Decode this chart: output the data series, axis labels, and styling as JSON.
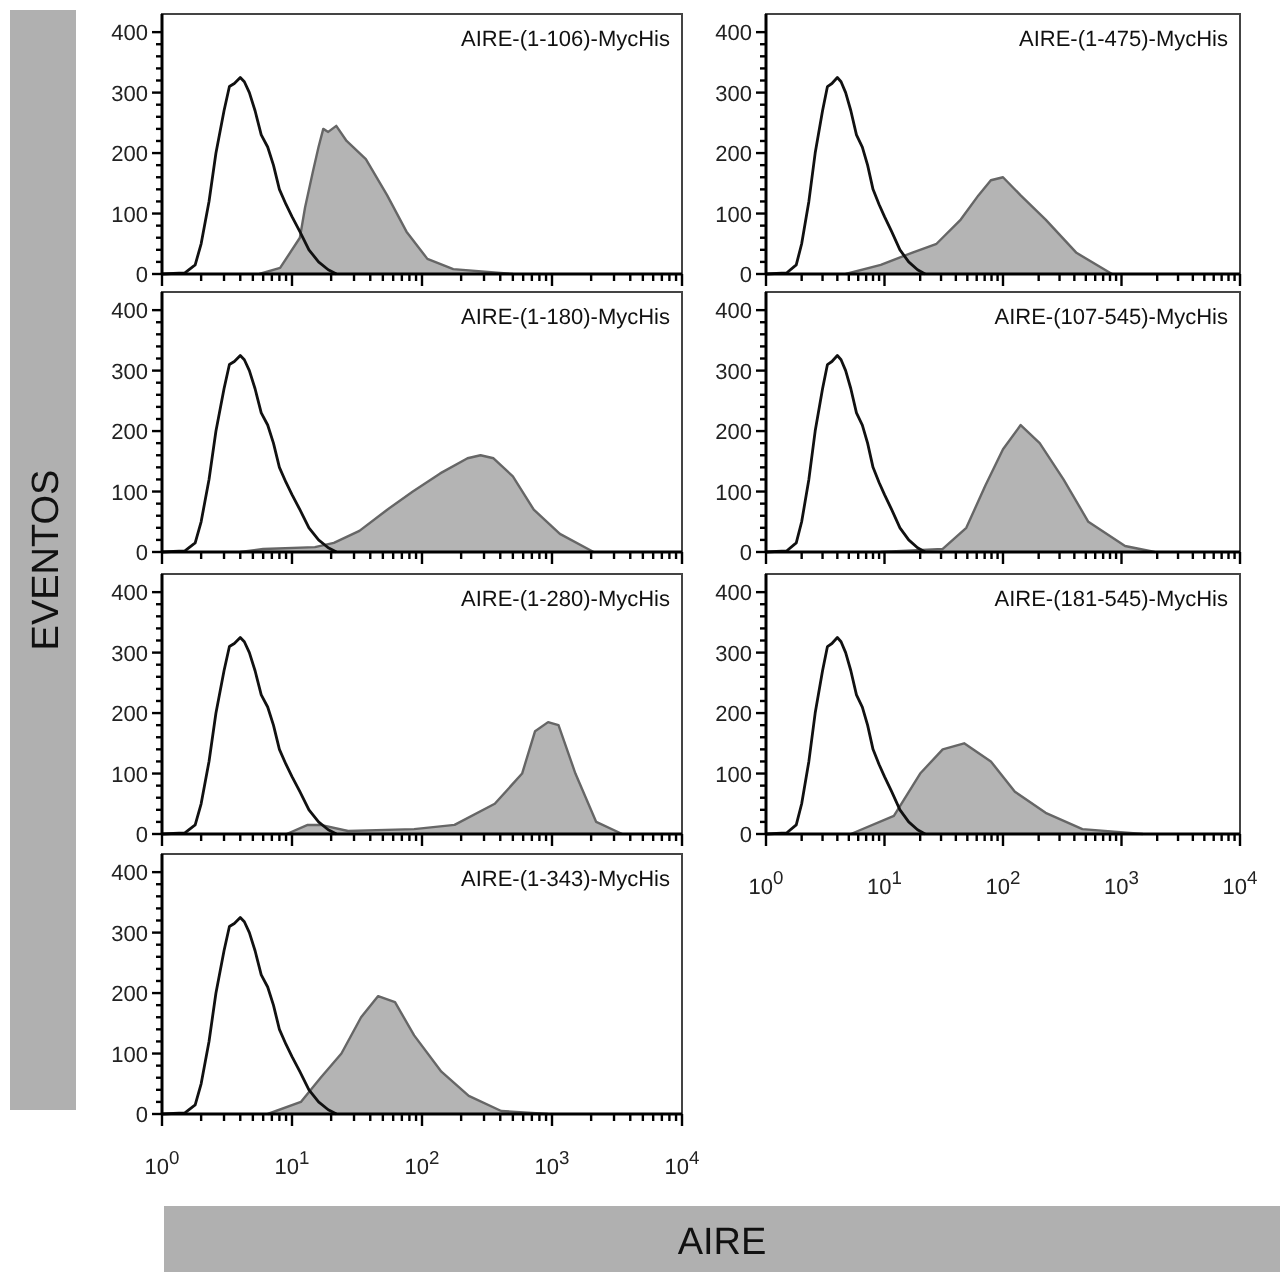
{
  "chart_data": [
    {
      "type": "area",
      "title": "AIRE-(1-106)-MycHis",
      "ylabel": "EVENTOS",
      "log": "x",
      "tick_labels": "y",
      "xlim": [
        1,
        10000
      ],
      "ylim": [
        0,
        430
      ],
      "xticks": [
        {
          "value": 1,
          "label": null
        },
        {
          "value": 2,
          "label": null
        },
        {
          "value": 3,
          "label": null
        },
        {
          "value": 4,
          "label": null
        },
        {
          "value": 5,
          "label": null
        },
        {
          "value": 6,
          "label": null
        },
        {
          "value": 7,
          "label": null
        },
        {
          "value": 8,
          "label": null
        },
        {
          "value": 9,
          "label": null
        },
        {
          "value": 10,
          "label": null
        },
        {
          "value": 20,
          "label": null
        },
        {
          "value": 30,
          "label": null
        },
        {
          "value": 40,
          "label": null
        },
        {
          "value": 50,
          "label": null
        },
        {
          "value": 60,
          "label": null
        },
        {
          "value": 70,
          "label": null
        },
        {
          "value": 80,
          "label": null
        },
        {
          "value": 90,
          "label": null
        },
        {
          "value": 100,
          "label": null
        },
        {
          "value": 200,
          "label": null
        },
        {
          "value": 300,
          "label": null
        },
        {
          "value": 400,
          "label": null
        },
        {
          "value": 500,
          "label": null
        },
        {
          "value": 600,
          "label": null
        },
        {
          "value": 700,
          "label": null
        },
        {
          "value": 800,
          "label": null
        },
        {
          "value": 900,
          "label": null
        },
        {
          "value": 1000,
          "label": null
        },
        {
          "value": 2000,
          "label": null
        },
        {
          "value": 3000,
          "label": null
        },
        {
          "value": 4000,
          "label": null
        },
        {
          "value": 5000,
          "label": null
        },
        {
          "value": 6000,
          "label": null
        },
        {
          "value": 7000,
          "label": null
        },
        {
          "value": 8000,
          "label": null
        },
        {
          "value": 9000,
          "label": null
        },
        {
          "value": 10000,
          "label": null
        }
      ],
      "yticks": [
        0,
        {
          "value": 20,
          "label": null
        },
        {
          "value": 40,
          "label": null
        },
        {
          "value": 60,
          "label": null
        },
        {
          "value": 80,
          "label": null
        },
        100,
        {
          "value": 120,
          "label": null
        },
        {
          "value": 140,
          "label": null
        },
        {
          "value": 160,
          "label": null
        },
        {
          "value": 180,
          "label": null
        },
        200,
        {
          "value": 220,
          "label": null
        },
        {
          "value": 240,
          "label": null
        },
        {
          "value": 260,
          "label": null
        },
        {
          "value": 280,
          "label": null
        },
        300,
        {
          "value": 320,
          "label": null
        },
        {
          "value": 340,
          "label": null
        },
        {
          "value": 360,
          "label": null
        },
        {
          "value": 380,
          "label": null
        },
        400
      ],
      "series": [
        {
          "type": "area",
          "color": "#b4b4b4",
          "x": [
            5.6,
            8.1,
            11.5,
            12.6,
            14.5,
            16,
            17.4,
            19,
            21.9,
            26.3,
            37,
            54,
            76,
            110,
            174,
            500
          ],
          "values": [
            0,
            10,
            60,
            110,
            170,
            210,
            240,
            235,
            245,
            220,
            190,
            130,
            70,
            25,
            8,
            0
          ]
        },
        {
          "type": "line",
          "color": "#111111",
          "x": [
            1,
            1.5,
            1.8,
            2,
            2.3,
            2.6,
            3,
            3.3,
            3.6,
            4,
            4.3,
            4.7,
            5.2,
            5.8,
            6.5,
            7.2,
            8,
            9,
            10,
            11.5,
            13.5,
            16,
            19,
            22
          ],
          "values": [
            0,
            2,
            15,
            50,
            120,
            200,
            270,
            310,
            315,
            325,
            318,
            300,
            270,
            230,
            210,
            180,
            140,
            115,
            95,
            70,
            40,
            20,
            7,
            0
          ]
        }
      ]
    },
    {
      "type": "area",
      "title": "AIRE-(1-180)-MycHis",
      "log": "x",
      "tick_labels": "y",
      "xlim": [
        1,
        10000
      ],
      "ylim": [
        0,
        430
      ],
      "xticks": [
        {
          "value": 1,
          "label": null
        },
        {
          "value": 2,
          "label": null
        },
        {
          "value": 3,
          "label": null
        },
        {
          "value": 4,
          "label": null
        },
        {
          "value": 5,
          "label": null
        },
        {
          "value": 6,
          "label": null
        },
        {
          "value": 7,
          "label": null
        },
        {
          "value": 8,
          "label": null
        },
        {
          "value": 9,
          "label": null
        },
        {
          "value": 10,
          "label": null
        },
        {
          "value": 20,
          "label": null
        },
        {
          "value": 30,
          "label": null
        },
        {
          "value": 40,
          "label": null
        },
        {
          "value": 50,
          "label": null
        },
        {
          "value": 60,
          "label": null
        },
        {
          "value": 70,
          "label": null
        },
        {
          "value": 80,
          "label": null
        },
        {
          "value": 90,
          "label": null
        },
        {
          "value": 100,
          "label": null
        },
        {
          "value": 200,
          "label": null
        },
        {
          "value": 300,
          "label": null
        },
        {
          "value": 400,
          "label": null
        },
        {
          "value": 500,
          "label": null
        },
        {
          "value": 600,
          "label": null
        },
        {
          "value": 700,
          "label": null
        },
        {
          "value": 800,
          "label": null
        },
        {
          "value": 900,
          "label": null
        },
        {
          "value": 1000,
          "label": null
        },
        {
          "value": 2000,
          "label": null
        },
        {
          "value": 3000,
          "label": null
        },
        {
          "value": 4000,
          "label": null
        },
        {
          "value": 5000,
          "label": null
        },
        {
          "value": 6000,
          "label": null
        },
        {
          "value": 7000,
          "label": null
        },
        {
          "value": 8000,
          "label": null
        },
        {
          "value": 9000,
          "label": null
        },
        {
          "value": 10000,
          "label": null
        }
      ],
      "yticks": [
        0,
        {
          "value": 20,
          "label": null
        },
        {
          "value": 40,
          "label": null
        },
        {
          "value": 60,
          "label": null
        },
        {
          "value": 80,
          "label": null
        },
        100,
        {
          "value": 120,
          "label": null
        },
        {
          "value": 140,
          "label": null
        },
        {
          "value": 160,
          "label": null
        },
        {
          "value": 180,
          "label": null
        },
        200,
        {
          "value": 220,
          "label": null
        },
        {
          "value": 240,
          "label": null
        },
        {
          "value": 260,
          "label": null
        },
        {
          "value": 280,
          "label": null
        },
        300,
        {
          "value": 320,
          "label": null
        },
        {
          "value": 340,
          "label": null
        },
        {
          "value": 360,
          "label": null
        },
        {
          "value": 380,
          "label": null
        },
        400
      ],
      "series": [
        {
          "type": "area",
          "color": "#b4b4b4",
          "x": [
            4,
            6,
            15,
            21,
            33,
            54,
            85,
            138,
            224,
            282,
            355,
            500,
            724,
            1150,
            2090
          ],
          "values": [
            0,
            5,
            8,
            15,
            35,
            70,
            100,
            130,
            155,
            160,
            155,
            125,
            70,
            30,
            0
          ]
        },
        {
          "type": "line",
          "color": "#111111",
          "x": [
            1,
            1.5,
            1.8,
            2,
            2.3,
            2.6,
            3,
            3.3,
            3.6,
            4,
            4.3,
            4.7,
            5.2,
            5.8,
            6.5,
            7.2,
            8,
            9,
            10,
            11.5,
            13.5,
            16,
            19,
            22
          ],
          "values": [
            0,
            2,
            15,
            50,
            120,
            200,
            270,
            310,
            315,
            325,
            318,
            300,
            270,
            230,
            210,
            180,
            140,
            115,
            95,
            70,
            40,
            20,
            7,
            0
          ]
        }
      ]
    },
    {
      "type": "area",
      "title": "AIRE-(1-280)-MycHis",
      "log": "x",
      "tick_labels": "y",
      "xlim": [
        1,
        10000
      ],
      "ylim": [
        0,
        430
      ],
      "xticks": [
        {
          "value": 1,
          "label": null
        },
        {
          "value": 2,
          "label": null
        },
        {
          "value": 3,
          "label": null
        },
        {
          "value": 4,
          "label": null
        },
        {
          "value": 5,
          "label": null
        },
        {
          "value": 6,
          "label": null
        },
        {
          "value": 7,
          "label": null
        },
        {
          "value": 8,
          "label": null
        },
        {
          "value": 9,
          "label": null
        },
        {
          "value": 10,
          "label": null
        },
        {
          "value": 20,
          "label": null
        },
        {
          "value": 30,
          "label": null
        },
        {
          "value": 40,
          "label": null
        },
        {
          "value": 50,
          "label": null
        },
        {
          "value": 60,
          "label": null
        },
        {
          "value": 70,
          "label": null
        },
        {
          "value": 80,
          "label": null
        },
        {
          "value": 90,
          "label": null
        },
        {
          "value": 100,
          "label": null
        },
        {
          "value": 200,
          "label": null
        },
        {
          "value": 300,
          "label": null
        },
        {
          "value": 400,
          "label": null
        },
        {
          "value": 500,
          "label": null
        },
        {
          "value": 600,
          "label": null
        },
        {
          "value": 700,
          "label": null
        },
        {
          "value": 800,
          "label": null
        },
        {
          "value": 900,
          "label": null
        },
        {
          "value": 1000,
          "label": null
        },
        {
          "value": 2000,
          "label": null
        },
        {
          "value": 3000,
          "label": null
        },
        {
          "value": 4000,
          "label": null
        },
        {
          "value": 5000,
          "label": null
        },
        {
          "value": 6000,
          "label": null
        },
        {
          "value": 7000,
          "label": null
        },
        {
          "value": 8000,
          "label": null
        },
        {
          "value": 9000,
          "label": null
        },
        {
          "value": 10000,
          "label": null
        }
      ],
      "yticks": [
        0,
        {
          "value": 20,
          "label": null
        },
        {
          "value": 40,
          "label": null
        },
        {
          "value": 60,
          "label": null
        },
        {
          "value": 80,
          "label": null
        },
        100,
        {
          "value": 120,
          "label": null
        },
        {
          "value": 140,
          "label": null
        },
        {
          "value": 160,
          "label": null
        },
        {
          "value": 180,
          "label": null
        },
        200,
        {
          "value": 220,
          "label": null
        },
        {
          "value": 240,
          "label": null
        },
        {
          "value": 260,
          "label": null
        },
        {
          "value": 280,
          "label": null
        },
        300,
        {
          "value": 320,
          "label": null
        },
        {
          "value": 340,
          "label": null
        },
        {
          "value": 360,
          "label": null
        },
        {
          "value": 380,
          "label": null
        },
        400
      ],
      "series": [
        {
          "type": "area",
          "color": "#b4b4b4",
          "x": [
            9.1,
            13.2,
            16.6,
            27,
            87,
            178,
            363,
            589,
            741,
            933,
            1122,
            1514,
            2188,
            3467
          ],
          "values": [
            0,
            15,
            15,
            5,
            8,
            15,
            50,
            100,
            170,
            185,
            180,
            100,
            20,
            0
          ]
        },
        {
          "type": "line",
          "color": "#111111",
          "x": [
            1,
            1.5,
            1.8,
            2,
            2.3,
            2.6,
            3,
            3.3,
            3.6,
            4,
            4.3,
            4.7,
            5.2,
            5.8,
            6.5,
            7.2,
            8,
            9,
            10,
            11.5,
            13.5,
            16,
            19,
            22
          ],
          "values": [
            0,
            2,
            15,
            50,
            120,
            200,
            270,
            310,
            315,
            325,
            318,
            300,
            270,
            230,
            210,
            180,
            140,
            115,
            95,
            70,
            40,
            20,
            7,
            0
          ]
        }
      ]
    },
    {
      "type": "area",
      "title": "AIRE-(1-343)-MycHis",
      "xlabel": "AIRE",
      "log": "x",
      "xlim": [
        1,
        10000
      ],
      "ylim": [
        0,
        430
      ],
      "xticks": [
        {
          "value": 1,
          "label": "10$^{0}$"
        },
        {
          "value": 2,
          "label": null
        },
        {
          "value": 3,
          "label": null
        },
        {
          "value": 4,
          "label": null
        },
        {
          "value": 5,
          "label": null
        },
        {
          "value": 6,
          "label": null
        },
        {
          "value": 7,
          "label": null
        },
        {
          "value": 8,
          "label": null
        },
        {
          "value": 9,
          "label": null
        },
        {
          "value": 10,
          "label": "10$^{1}$"
        },
        {
          "value": 20,
          "label": null
        },
        {
          "value": 30,
          "label": null
        },
        {
          "value": 40,
          "label": null
        },
        {
          "value": 50,
          "label": null
        },
        {
          "value": 60,
          "label": null
        },
        {
          "value": 70,
          "label": null
        },
        {
          "value": 80,
          "label": null
        },
        {
          "value": 90,
          "label": null
        },
        {
          "value": 100,
          "label": "10$^{2}$"
        },
        {
          "value": 200,
          "label": null
        },
        {
          "value": 300,
          "label": null
        },
        {
          "value": 400,
          "label": null
        },
        {
          "value": 500,
          "label": null
        },
        {
          "value": 600,
          "label": null
        },
        {
          "value": 700,
          "label": null
        },
        {
          "value": 800,
          "label": null
        },
        {
          "value": 900,
          "label": null
        },
        {
          "value": 1000,
          "label": "10$^{3}$"
        },
        {
          "value": 2000,
          "label": null
        },
        {
          "value": 3000,
          "label": null
        },
        {
          "value": 4000,
          "label": null
        },
        {
          "value": 5000,
          "label": null
        },
        {
          "value": 6000,
          "label": null
        },
        {
          "value": 7000,
          "label": null
        },
        {
          "value": 8000,
          "label": null
        },
        {
          "value": 9000,
          "label": null
        },
        {
          "value": 10000,
          "label": "10$^{4}$"
        }
      ],
      "yticks": [
        0,
        {
          "value": 20,
          "label": null
        },
        {
          "value": 40,
          "label": null
        },
        {
          "value": 60,
          "label": null
        },
        {
          "value": 80,
          "label": null
        },
        100,
        {
          "value": 120,
          "label": null
        },
        {
          "value": 140,
          "label": null
        },
        {
          "value": 160,
          "label": null
        },
        {
          "value": 180,
          "label": null
        },
        200,
        {
          "value": 220,
          "label": null
        },
        {
          "value": 240,
          "label": null
        },
        {
          "value": 260,
          "label": null
        },
        {
          "value": 280,
          "label": null
        },
        300,
        {
          "value": 320,
          "label": null
        },
        {
          "value": 340,
          "label": null
        },
        {
          "value": 360,
          "label": null
        },
        {
          "value": 380,
          "label": null
        },
        400
      ],
      "series": [
        {
          "type": "area",
          "color": "#b4b4b4",
          "x": [
            6.5,
            11.7,
            16.6,
            24,
            34,
            46,
            62,
            87,
            141,
            229,
            407,
            933
          ],
          "values": [
            0,
            20,
            60,
            100,
            160,
            195,
            185,
            130,
            70,
            30,
            5,
            0
          ]
        },
        {
          "type": "line",
          "color": "#111111",
          "x": [
            1,
            1.5,
            1.8,
            2,
            2.3,
            2.6,
            3,
            3.3,
            3.6,
            4,
            4.3,
            4.7,
            5.2,
            5.8,
            6.5,
            7.2,
            8,
            9,
            10,
            11.5,
            13.5,
            16,
            19,
            22
          ],
          "values": [
            0,
            2,
            15,
            50,
            120,
            200,
            270,
            310,
            315,
            325,
            318,
            300,
            270,
            230,
            210,
            180,
            140,
            115,
            95,
            70,
            40,
            20,
            7,
            0
          ]
        }
      ]
    },
    {
      "type": "area",
      "title": "AIRE-(1-475)-MycHis",
      "log": "x",
      "tick_labels": "y",
      "xlim": [
        1,
        10000
      ],
      "ylim": [
        0,
        430
      ],
      "xticks": [
        {
          "value": 1,
          "label": null
        },
        {
          "value": 2,
          "label": null
        },
        {
          "value": 3,
          "label": null
        },
        {
          "value": 4,
          "label": null
        },
        {
          "value": 5,
          "label": null
        },
        {
          "value": 6,
          "label": null
        },
        {
          "value": 7,
          "label": null
        },
        {
          "value": 8,
          "label": null
        },
        {
          "value": 9,
          "label": null
        },
        {
          "value": 10,
          "label": null
        },
        {
          "value": 20,
          "label": null
        },
        {
          "value": 30,
          "label": null
        },
        {
          "value": 40,
          "label": null
        },
        {
          "value": 50,
          "label": null
        },
        {
          "value": 60,
          "label": null
        },
        {
          "value": 70,
          "label": null
        },
        {
          "value": 80,
          "label": null
        },
        {
          "value": 90,
          "label": null
        },
        {
          "value": 100,
          "label": null
        },
        {
          "value": 200,
          "label": null
        },
        {
          "value": 300,
          "label": null
        },
        {
          "value": 400,
          "label": null
        },
        {
          "value": 500,
          "label": null
        },
        {
          "value": 600,
          "label": null
        },
        {
          "value": 700,
          "label": null
        },
        {
          "value": 800,
          "label": null
        },
        {
          "value": 900,
          "label": null
        },
        {
          "value": 1000,
          "label": null
        },
        {
          "value": 2000,
          "label": null
        },
        {
          "value": 3000,
          "label": null
        },
        {
          "value": 4000,
          "label": null
        },
        {
          "value": 5000,
          "label": null
        },
        {
          "value": 6000,
          "label": null
        },
        {
          "value": 7000,
          "label": null
        },
        {
          "value": 8000,
          "label": null
        },
        {
          "value": 9000,
          "label": null
        },
        {
          "value": 10000,
          "label": null
        }
      ],
      "yticks": [
        0,
        {
          "value": 20,
          "label": null
        },
        {
          "value": 40,
          "label": null
        },
        {
          "value": 60,
          "label": null
        },
        {
          "value": 80,
          "label": null
        },
        100,
        {
          "value": 120,
          "label": null
        },
        {
          "value": 140,
          "label": null
        },
        {
          "value": 160,
          "label": null
        },
        {
          "value": 180,
          "label": null
        },
        200,
        {
          "value": 220,
          "label": null
        },
        {
          "value": 240,
          "label": null
        },
        {
          "value": 260,
          "label": null
        },
        {
          "value": 280,
          "label": null
        },
        300,
        {
          "value": 320,
          "label": null
        },
        {
          "value": 340,
          "label": null
        },
        {
          "value": 360,
          "label": null
        },
        {
          "value": 380,
          "label": null
        },
        400
      ],
      "series": [
        {
          "type": "area",
          "color": "#b4b4b4",
          "x": [
            4.7,
            9.3,
            17,
            27.5,
            44,
            62,
            79,
            100,
            141,
            229,
            417,
            832
          ],
          "values": [
            0,
            15,
            35,
            50,
            90,
            130,
            155,
            160,
            130,
            90,
            35,
            0
          ]
        },
        {
          "type": "line",
          "color": "#111111",
          "x": [
            1,
            1.5,
            1.8,
            2,
            2.3,
            2.6,
            3,
            3.3,
            3.6,
            4,
            4.3,
            4.7,
            5.2,
            5.8,
            6.5,
            7.2,
            8,
            9,
            10,
            11.5,
            13.5,
            16,
            19,
            22
          ],
          "values": [
            0,
            2,
            15,
            50,
            120,
            200,
            270,
            310,
            315,
            325,
            318,
            300,
            270,
            230,
            210,
            180,
            140,
            115,
            95,
            70,
            40,
            20,
            7,
            0
          ]
        }
      ]
    },
    {
      "type": "area",
      "title": "AIRE-(107-545)-MycHis",
      "log": "x",
      "tick_labels": "y",
      "xlim": [
        1,
        10000
      ],
      "ylim": [
        0,
        430
      ],
      "xticks": [
        {
          "value": 1,
          "label": null
        },
        {
          "value": 2,
          "label": null
        },
        {
          "value": 3,
          "label": null
        },
        {
          "value": 4,
          "label": null
        },
        {
          "value": 5,
          "label": null
        },
        {
          "value": 6,
          "label": null
        },
        {
          "value": 7,
          "label": null
        },
        {
          "value": 8,
          "label": null
        },
        {
          "value": 9,
          "label": null
        },
        {
          "value": 10,
          "label": null
        },
        {
          "value": 20,
          "label": null
        },
        {
          "value": 30,
          "label": null
        },
        {
          "value": 40,
          "label": null
        },
        {
          "value": 50,
          "label": null
        },
        {
          "value": 60,
          "label": null
        },
        {
          "value": 70,
          "label": null
        },
        {
          "value": 80,
          "label": null
        },
        {
          "value": 90,
          "label": null
        },
        {
          "value": 100,
          "label": null
        },
        {
          "value": 200,
          "label": null
        },
        {
          "value": 300,
          "label": null
        },
        {
          "value": 400,
          "label": null
        },
        {
          "value": 500,
          "label": null
        },
        {
          "value": 600,
          "label": null
        },
        {
          "value": 700,
          "label": null
        },
        {
          "value": 800,
          "label": null
        },
        {
          "value": 900,
          "label": null
        },
        {
          "value": 1000,
          "label": null
        },
        {
          "value": 2000,
          "label": null
        },
        {
          "value": 3000,
          "label": null
        },
        {
          "value": 4000,
          "label": null
        },
        {
          "value": 5000,
          "label": null
        },
        {
          "value": 6000,
          "label": null
        },
        {
          "value": 7000,
          "label": null
        },
        {
          "value": 8000,
          "label": null
        },
        {
          "value": 9000,
          "label": null
        },
        {
          "value": 10000,
          "label": null
        }
      ],
      "yticks": [
        0,
        {
          "value": 20,
          "label": null
        },
        {
          "value": 40,
          "label": null
        },
        {
          "value": 60,
          "label": null
        },
        {
          "value": 80,
          "label": null
        },
        100,
        {
          "value": 120,
          "label": null
        },
        {
          "value": 140,
          "label": null
        },
        {
          "value": 160,
          "label": null
        },
        {
          "value": 180,
          "label": null
        },
        200,
        {
          "value": 220,
          "label": null
        },
        {
          "value": 240,
          "label": null
        },
        {
          "value": 260,
          "label": null
        },
        {
          "value": 280,
          "label": null
        },
        300,
        {
          "value": 320,
          "label": null
        },
        {
          "value": 340,
          "label": null
        },
        {
          "value": 360,
          "label": null
        },
        {
          "value": 380,
          "label": null
        },
        400
      ],
      "series": [
        {
          "type": "area",
          "color": "#b4b4b4",
          "x": [
            9.3,
            31,
            49,
            71,
            100,
            141,
            204,
            324,
            525,
            1072,
            1905
          ],
          "values": [
            0,
            5,
            40,
            110,
            170,
            210,
            180,
            120,
            50,
            10,
            0
          ]
        },
        {
          "type": "line",
          "color": "#111111",
          "x": [
            1,
            1.5,
            1.8,
            2,
            2.3,
            2.6,
            3,
            3.3,
            3.6,
            4,
            4.3,
            4.7,
            5.2,
            5.8,
            6.5,
            7.2,
            8,
            9,
            10,
            11.5,
            13.5,
            16,
            19,
            22
          ],
          "values": [
            0,
            2,
            15,
            50,
            120,
            200,
            270,
            310,
            315,
            325,
            318,
            300,
            270,
            230,
            210,
            180,
            140,
            115,
            95,
            70,
            40,
            20,
            7,
            0
          ]
        }
      ]
    },
    {
      "type": "area",
      "title": "AIRE-(181-545)-MycHis",
      "log": "x",
      "xlim": [
        1,
        10000
      ],
      "ylim": [
        0,
        430
      ],
      "xticks": [
        {
          "value": 1,
          "label": "10$^{0}$"
        },
        {
          "value": 2,
          "label": null
        },
        {
          "value": 3,
          "label": null
        },
        {
          "value": 4,
          "label": null
        },
        {
          "value": 5,
          "label": null
        },
        {
          "value": 6,
          "label": null
        },
        {
          "value": 7,
          "label": null
        },
        {
          "value": 8,
          "label": null
        },
        {
          "value": 9,
          "label": null
        },
        {
          "value": 10,
          "label": "10$^{1}$"
        },
        {
          "value": 20,
          "label": null
        },
        {
          "value": 30,
          "label": null
        },
        {
          "value": 40,
          "label": null
        },
        {
          "value": 50,
          "label": null
        },
        {
          "value": 60,
          "label": null
        },
        {
          "value": 70,
          "label": null
        },
        {
          "value": 80,
          "label": null
        },
        {
          "value": 90,
          "label": null
        },
        {
          "value": 100,
          "label": "10$^{2}$"
        },
        {
          "value": 200,
          "label": null
        },
        {
          "value": 300,
          "label": null
        },
        {
          "value": 400,
          "label": null
        },
        {
          "value": 500,
          "label": null
        },
        {
          "value": 600,
          "label": null
        },
        {
          "value": 700,
          "label": null
        },
        {
          "value": 800,
          "label": null
        },
        {
          "value": 900,
          "label": null
        },
        {
          "value": 1000,
          "label": "10$^{3}$"
        },
        {
          "value": 2000,
          "label": null
        },
        {
          "value": 3000,
          "label": null
        },
        {
          "value": 4000,
          "label": null
        },
        {
          "value": 5000,
          "label": null
        },
        {
          "value": 6000,
          "label": null
        },
        {
          "value": 7000,
          "label": null
        },
        {
          "value": 8000,
          "label": null
        },
        {
          "value": 9000,
          "label": null
        },
        {
          "value": 10000,
          "label": "10$^{4}$"
        }
      ],
      "yticks": [
        0,
        {
          "value": 20,
          "label": null
        },
        {
          "value": 40,
          "label": null
        },
        {
          "value": 60,
          "label": null
        },
        {
          "value": 80,
          "label": null
        },
        100,
        {
          "value": 120,
          "label": null
        },
        {
          "value": 140,
          "label": null
        },
        {
          "value": 160,
          "label": null
        },
        {
          "value": 180,
          "label": null
        },
        200,
        {
          "value": 220,
          "label": null
        },
        {
          "value": 240,
          "label": null
        },
        {
          "value": 260,
          "label": null
        },
        {
          "value": 280,
          "label": null
        },
        300,
        {
          "value": 320,
          "label": null
        },
        {
          "value": 340,
          "label": null
        },
        {
          "value": 360,
          "label": null
        },
        {
          "value": 380,
          "label": null
        },
        400
      ],
      "series": [
        {
          "type": "area",
          "color": "#b4b4b4",
          "x": [
            5.2,
            12,
            20,
            31,
            47,
            79,
            126,
            229,
            468,
            1514
          ],
          "values": [
            0,
            30,
            100,
            140,
            150,
            120,
            70,
            35,
            8,
            0
          ]
        },
        {
          "type": "line",
          "color": "#111111",
          "x": [
            1,
            1.5,
            1.8,
            2,
            2.3,
            2.6,
            3,
            3.3,
            3.6,
            4,
            4.3,
            4.7,
            5.2,
            5.8,
            6.5,
            7.2,
            8,
            9,
            10,
            11.5,
            13.5,
            16,
            19,
            22
          ],
          "values": [
            0,
            2,
            15,
            50,
            120,
            200,
            270,
            310,
            315,
            325,
            318,
            300,
            270,
            230,
            210,
            180,
            140,
            115,
            95,
            70,
            40,
            20,
            7,
            0
          ]
        }
      ]
    }
  ]
}
